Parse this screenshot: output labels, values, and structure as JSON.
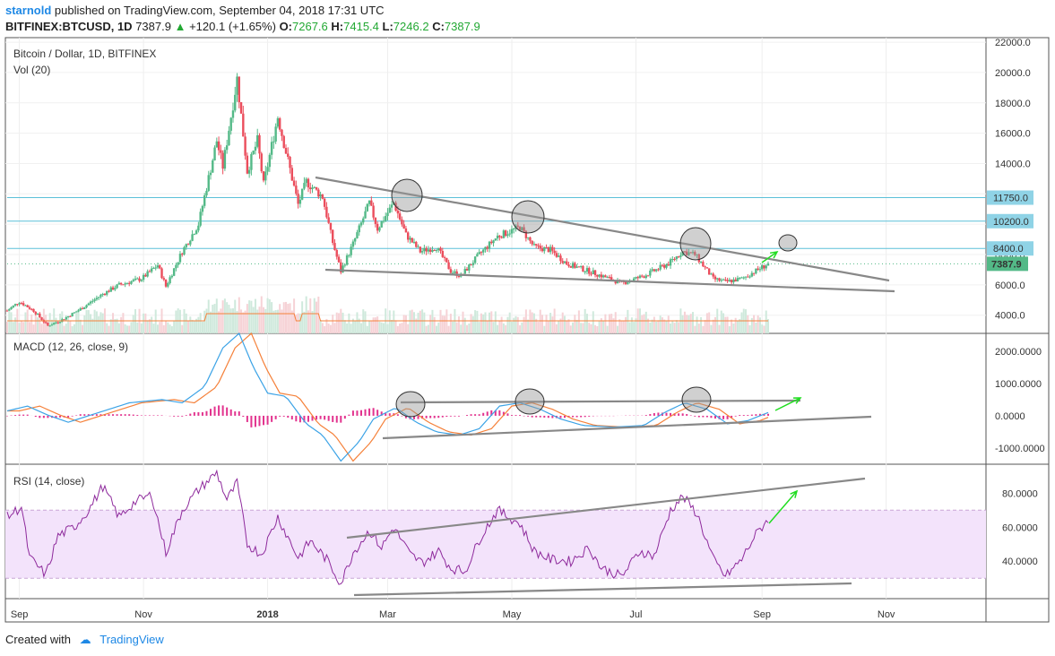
{
  "header": {
    "user": "starnold",
    "published": "published on TradingView.com, September 04, 2018 17:31 UTC",
    "symbol": "BITFINEX:BTCUSD, 1D",
    "last": "7387.9",
    "change": "+120.1 (+1.65%)",
    "o_label": "O:",
    "o": "7267.6",
    "h_label": "H:",
    "h": "7415.4",
    "l_label": "L:",
    "l": "7246.2",
    "c_label": "C:",
    "c": "7387.9"
  },
  "footer": {
    "created": "Created with",
    "brand": "TradingView"
  },
  "colors": {
    "up": "#53b987",
    "down": "#eb4d5c",
    "macd_line": "#3ca3e6",
    "signal_line": "#f5813a",
    "hist": "#e2338e",
    "rsi": "#8e2a9c",
    "rsi_band": "#f3e3fb",
    "trend": "#888888",
    "arrow": "#22dd22",
    "hline": "#5bc0d8"
  },
  "chart_data": [
    {
      "type": "candlestick",
      "title": "Bitcoin / Dollar, 1D, BITFINEX",
      "subtitle": "Vol (20)",
      "x_ticks": [
        "Sep",
        "Nov",
        "2018",
        "Mar",
        "May",
        "Jul",
        "Sep",
        "Nov"
      ],
      "y_ticks": [
        "4000.0",
        "6000.0",
        "8000.0",
        "10000.0",
        "12000.0",
        "14000.0",
        "16000.0",
        "18000.0",
        "20000.0",
        "22000.0"
      ],
      "ylim": [
        2800,
        22300
      ],
      "date_range": [
        "2017-08-26",
        "2018-09-04"
      ],
      "price_path": [
        [
          "2017-08-26",
          4300
        ],
        [
          "2017-09-01",
          4900
        ],
        [
          "2017-09-08",
          4300
        ],
        [
          "2017-09-15",
          3300
        ],
        [
          "2017-09-22",
          3700
        ],
        [
          "2017-10-01",
          4400
        ],
        [
          "2017-10-12",
          5400
        ],
        [
          "2017-10-20",
          6000
        ],
        [
          "2017-10-31",
          6400
        ],
        [
          "2017-11-08",
          7300
        ],
        [
          "2017-11-12",
          5900
        ],
        [
          "2017-11-20",
          8200
        ],
        [
          "2017-11-28",
          10000
        ],
        [
          "2017-12-07",
          15500
        ],
        [
          "2017-12-10",
          13800
        ],
        [
          "2017-12-17",
          19600
        ],
        [
          "2017-12-22",
          13500
        ],
        [
          "2017-12-27",
          15500
        ],
        [
          "2017-12-30",
          12600
        ],
        [
          "2018-01-06",
          17100
        ],
        [
          "2018-01-16",
          11300
        ],
        [
          "2018-01-20",
          12800
        ],
        [
          "2018-01-28",
          11800
        ],
        [
          "2018-02-02",
          8800
        ],
        [
          "2018-02-06",
          6900
        ],
        [
          "2018-02-12",
          8700
        ],
        [
          "2018-02-20",
          11400
        ],
        [
          "2018-02-24",
          9700
        ],
        [
          "2018-03-04",
          11400
        ],
        [
          "2018-03-10",
          9300
        ],
        [
          "2018-03-17",
          8200
        ],
        [
          "2018-03-25",
          8500
        ],
        [
          "2018-04-01",
          6900
        ],
        [
          "2018-04-06",
          6600
        ],
        [
          "2018-04-15",
          8000
        ],
        [
          "2018-04-24",
          9200
        ],
        [
          "2018-05-05",
          9800
        ],
        [
          "2018-05-12",
          8500
        ],
        [
          "2018-05-20",
          8300
        ],
        [
          "2018-05-28",
          7400
        ],
        [
          "2018-06-10",
          6800
        ],
        [
          "2018-06-24",
          6100
        ],
        [
          "2018-07-05",
          6600
        ],
        [
          "2018-07-17",
          7400
        ],
        [
          "2018-07-24",
          8200
        ],
        [
          "2018-07-30",
          8000
        ],
        [
          "2018-08-08",
          6400
        ],
        [
          "2018-08-14",
          6200
        ],
        [
          "2018-08-22",
          6400
        ],
        [
          "2018-09-04",
          7388
        ]
      ],
      "horizontal_levels": [
        "11750.0",
        "10200.0",
        "8400.0"
      ],
      "last_price": "7387.9"
    },
    {
      "type": "line",
      "title": "MACD (12, 26, close, 9)",
      "y_ticks": [
        "-1000.0000",
        "0.0000",
        "1000.0000",
        "2000.0000"
      ],
      "ylim": [
        -1500,
        2550
      ],
      "macd_path": [
        [
          "2017-08-26",
          150
        ],
        [
          "2017-09-05",
          300
        ],
        [
          "2017-09-15",
          20
        ],
        [
          "2017-09-25",
          -200
        ],
        [
          "2017-10-10",
          100
        ],
        [
          "2017-10-25",
          400
        ],
        [
          "2017-11-10",
          500
        ],
        [
          "2017-11-20",
          400
        ],
        [
          "2017-12-01",
          900
        ],
        [
          "2017-12-10",
          2100
        ],
        [
          "2017-12-18",
          2550
        ],
        [
          "2017-12-25",
          1500
        ],
        [
          "2018-01-01",
          700
        ],
        [
          "2018-01-10",
          600
        ],
        [
          "2018-01-20",
          -250
        ],
        [
          "2018-01-28",
          -600
        ],
        [
          "2018-02-06",
          -1400
        ],
        [
          "2018-02-15",
          -800
        ],
        [
          "2018-02-22",
          -100
        ],
        [
          "2018-03-05",
          250
        ],
        [
          "2018-03-15",
          -200
        ],
        [
          "2018-03-25",
          -500
        ],
        [
          "2018-04-05",
          -600
        ],
        [
          "2018-04-15",
          -400
        ],
        [
          "2018-04-25",
          300
        ],
        [
          "2018-05-05",
          400
        ],
        [
          "2018-05-15",
          200
        ],
        [
          "2018-05-25",
          -100
        ],
        [
          "2018-06-05",
          -300
        ],
        [
          "2018-06-20",
          -350
        ],
        [
          "2018-07-05",
          -300
        ],
        [
          "2018-07-15",
          100
        ],
        [
          "2018-07-25",
          400
        ],
        [
          "2018-08-05",
          200
        ],
        [
          "2018-08-15",
          -250
        ],
        [
          "2018-08-25",
          -150
        ],
        [
          "2018-09-04",
          100
        ]
      ],
      "signal_lag_days": 6,
      "hist_scale": 0.4
    },
    {
      "type": "line",
      "title": "RSI (14, close)",
      "y_ticks": [
        "40.0000",
        "60.0000",
        "80.0000"
      ],
      "ylim": [
        18,
        97
      ],
      "band": [
        30,
        70
      ],
      "rsi_path": [
        [
          "2017-08-26",
          66
        ],
        [
          "2017-09-02",
          72
        ],
        [
          "2017-09-06",
          42
        ],
        [
          "2017-09-14",
          32
        ],
        [
          "2017-09-20",
          55
        ],
        [
          "2017-09-28",
          60
        ],
        [
          "2017-10-05",
          70
        ],
        [
          "2017-10-12",
          84
        ],
        [
          "2017-10-20",
          66
        ],
        [
          "2017-10-28",
          75
        ],
        [
          "2017-11-05",
          79
        ],
        [
          "2017-11-12",
          45
        ],
        [
          "2017-11-20",
          70
        ],
        [
          "2017-11-28",
          82
        ],
        [
          "2017-12-07",
          92
        ],
        [
          "2017-12-12",
          76
        ],
        [
          "2017-12-17",
          86
        ],
        [
          "2017-12-22",
          50
        ],
        [
          "2017-12-29",
          44
        ],
        [
          "2018-01-06",
          66
        ],
        [
          "2018-01-16",
          42
        ],
        [
          "2018-01-22",
          52
        ],
        [
          "2018-01-30",
          41
        ],
        [
          "2018-02-06",
          27
        ],
        [
          "2018-02-12",
          45
        ],
        [
          "2018-02-20",
          58
        ],
        [
          "2018-02-26",
          48
        ],
        [
          "2018-03-04",
          60
        ],
        [
          "2018-03-12",
          44
        ],
        [
          "2018-03-18",
          39
        ],
        [
          "2018-03-26",
          46
        ],
        [
          "2018-04-01",
          36
        ],
        [
          "2018-04-08",
          34
        ],
        [
          "2018-04-16",
          55
        ],
        [
          "2018-04-24",
          70
        ],
        [
          "2018-05-05",
          62
        ],
        [
          "2018-05-12",
          46
        ],
        [
          "2018-05-20",
          41
        ],
        [
          "2018-05-30",
          40
        ],
        [
          "2018-06-08",
          48
        ],
        [
          "2018-06-14",
          36
        ],
        [
          "2018-06-24",
          31
        ],
        [
          "2018-07-03",
          46
        ],
        [
          "2018-07-10",
          43
        ],
        [
          "2018-07-18",
          70
        ],
        [
          "2018-07-24",
          78
        ],
        [
          "2018-07-31",
          68
        ],
        [
          "2018-08-08",
          41
        ],
        [
          "2018-08-14",
          31
        ],
        [
          "2018-08-22",
          41
        ],
        [
          "2018-08-28",
          54
        ],
        [
          "2018-09-04",
          65
        ]
      ]
    }
  ]
}
